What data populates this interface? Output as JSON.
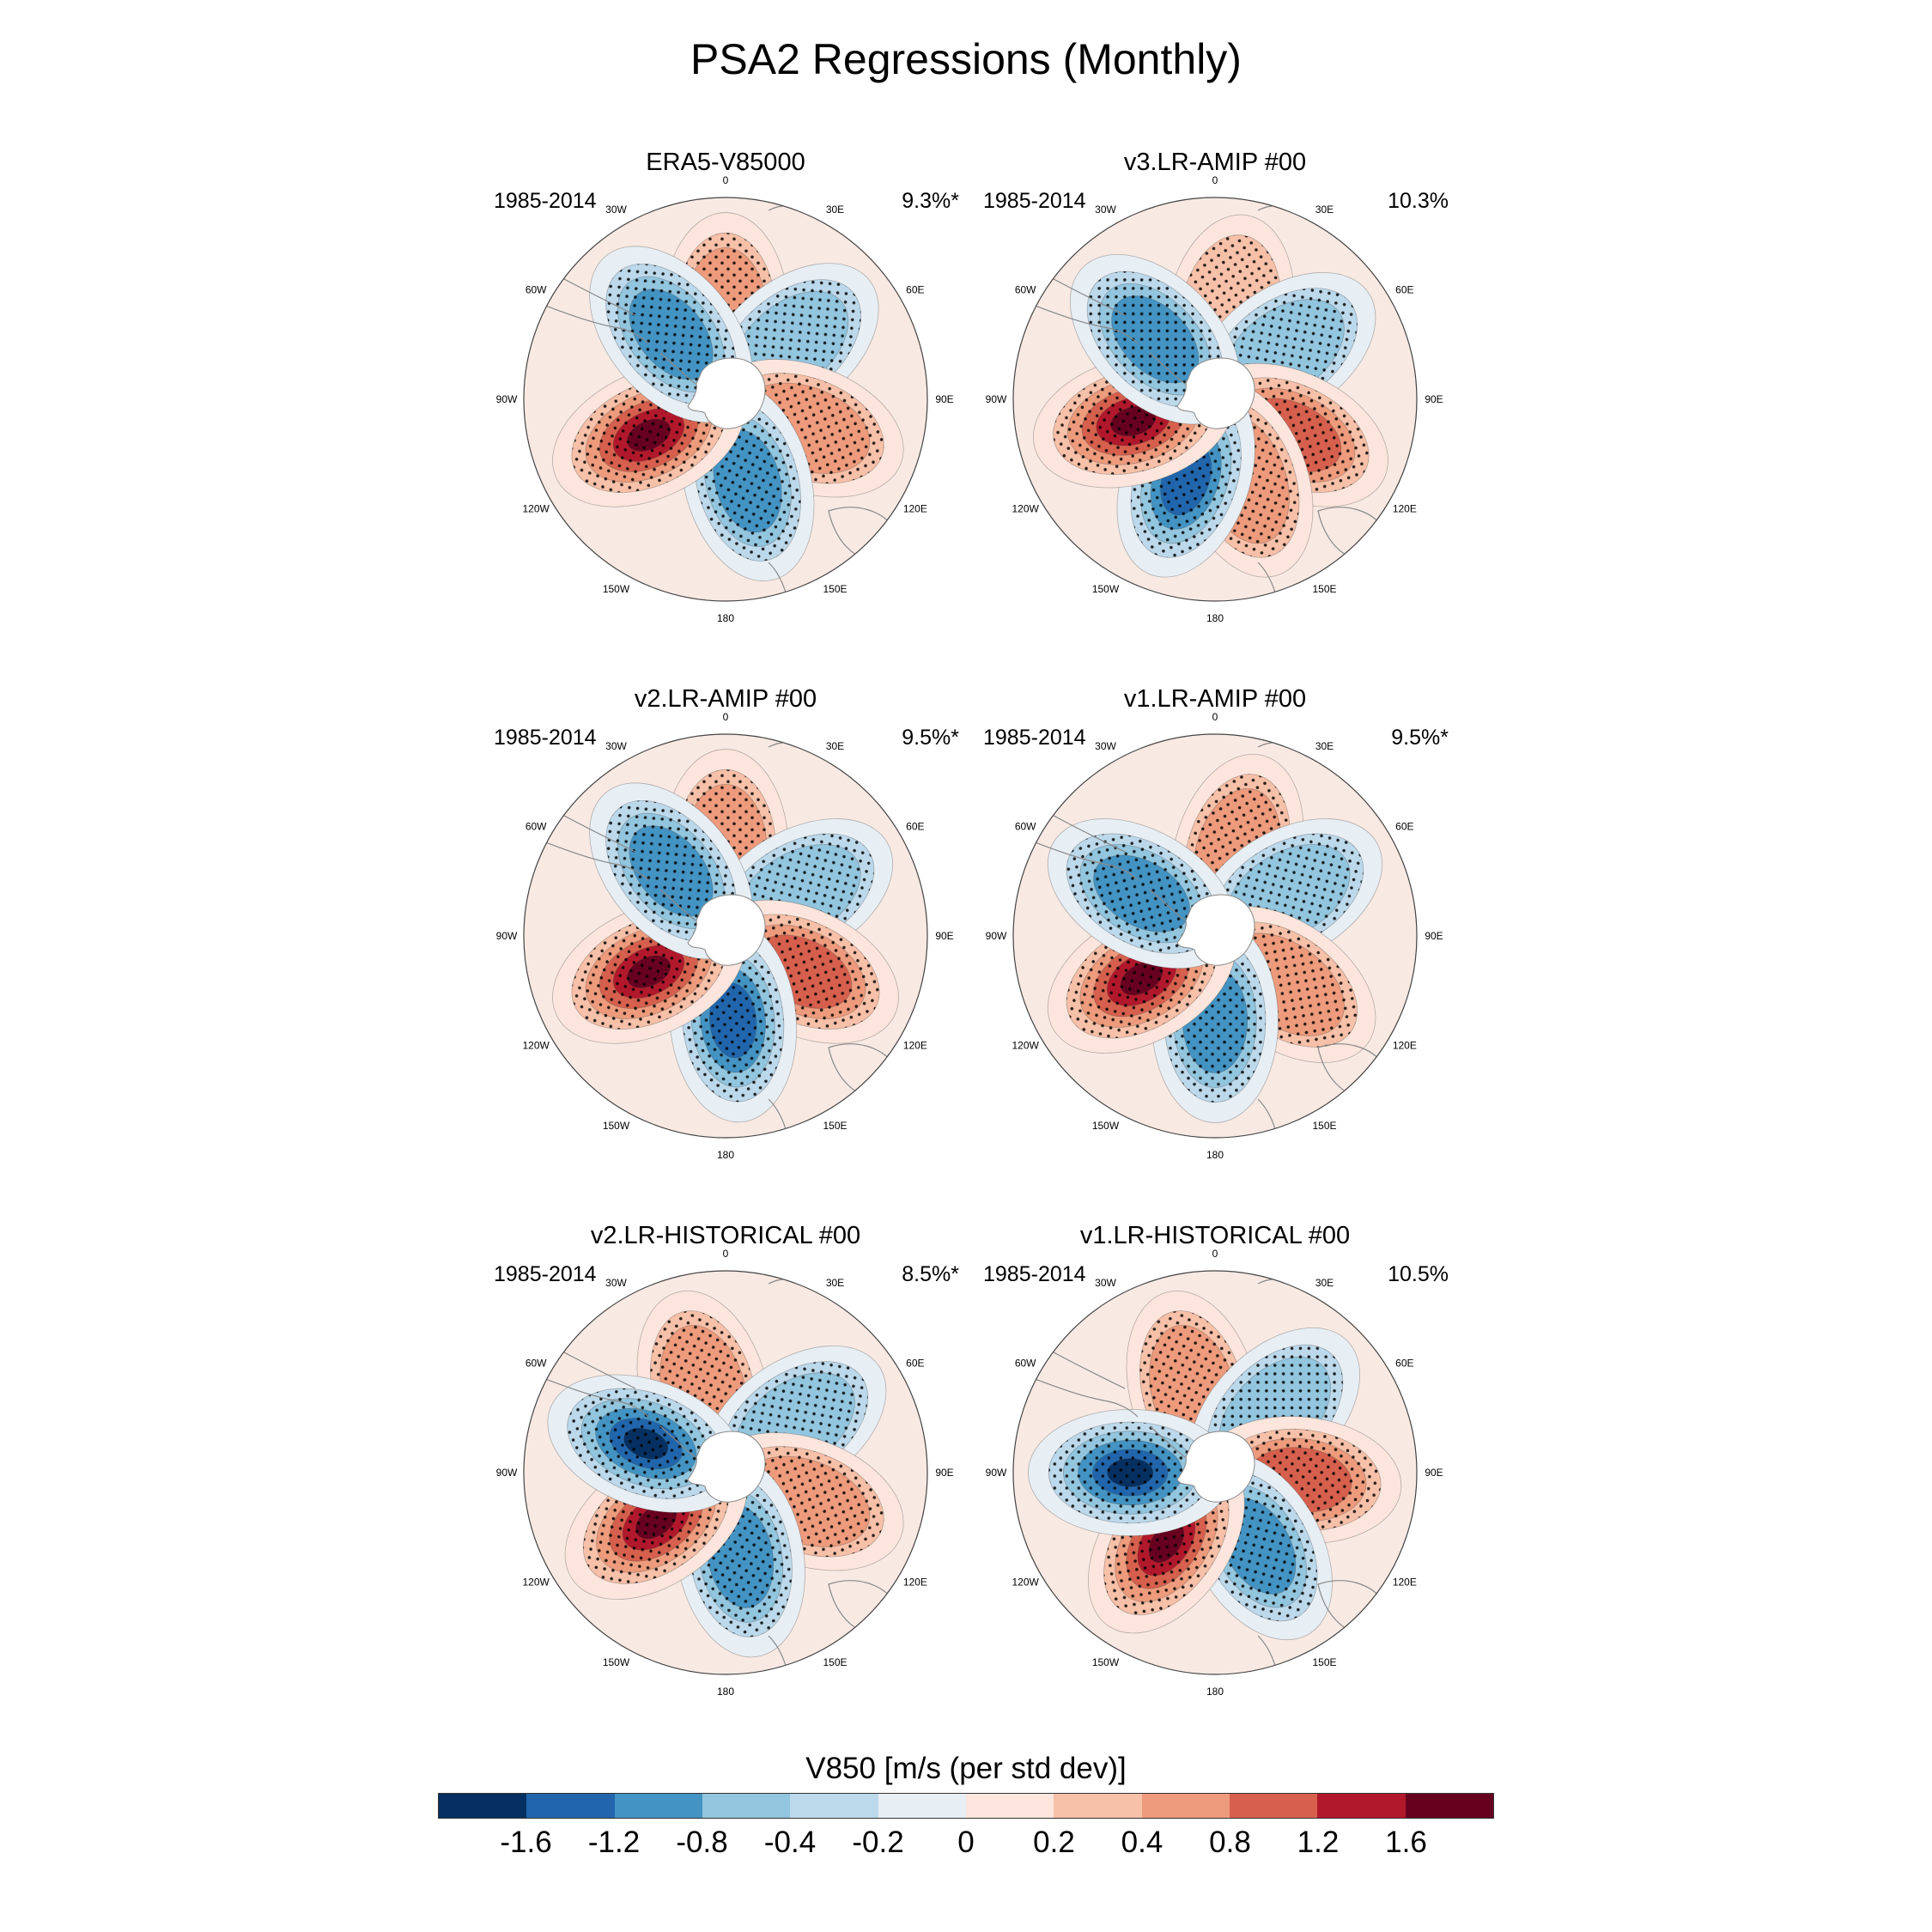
{
  "title": "PSA2 Regressions (Monthly)",
  "colorbar": {
    "title": "V850 [m/s (per std dev)]",
    "colors": [
      "#053061",
      "#2166ac",
      "#4393c3",
      "#92c5de",
      "#bcd9eb",
      "#e7eef4",
      "#fbe5dc",
      "#f7c0a8",
      "#ed9b7c",
      "#d6604d",
      "#b2182b",
      "#67001f"
    ],
    "labels": [
      "-1.6",
      "-1.2",
      "-0.8",
      "-0.4",
      "-0.2",
      "0",
      "0.2",
      "0.4",
      "0.8",
      "1.2",
      "1.6"
    ]
  },
  "lon_labels": [
    "0",
    "30E",
    "60E",
    "90E",
    "120E",
    "150E",
    "180",
    "150W",
    "120W",
    "90W",
    "60W",
    "30W"
  ],
  "chart_data": {
    "type": "heatmap",
    "projection": "south-polar-stereographic",
    "variable": "V850",
    "units": "m/s (per std dev)",
    "panels": [
      {
        "name": "ERA5-V85000",
        "period": "1985-2014",
        "variance_explained": "9.3%*",
        "centers": [
          {
            "lon": 0,
            "value": 0.6
          },
          {
            "lon": 50,
            "value": -0.6
          },
          {
            "lon": 110,
            "value": 0.7
          },
          {
            "lon": 165,
            "value": -1.1
          },
          {
            "lon": 245,
            "value": 1.8
          },
          {
            "lon": 320,
            "value": -1.0
          }
        ]
      },
      {
        "name": "v3.LR-AMIP  #00",
        "period": "1985-2014",
        "variance_explained": "10.3%",
        "centers": [
          {
            "lon": 10,
            "value": 0.2
          },
          {
            "lon": 55,
            "value": -0.5
          },
          {
            "lon": 115,
            "value": 0.9
          },
          {
            "lon": 160,
            "value": 0.4
          },
          {
            "lon": 200,
            "value": -1.5
          },
          {
            "lon": 255,
            "value": 1.8
          },
          {
            "lon": 315,
            "value": -0.8
          }
        ]
      },
      {
        "name": "v2.LR-AMIP  #00",
        "period": "1985-2014",
        "variance_explained": "9.5%*",
        "centers": [
          {
            "lon": 0,
            "value": 0.5
          },
          {
            "lon": 60,
            "value": -0.5
          },
          {
            "lon": 115,
            "value": 0.9
          },
          {
            "lon": 175,
            "value": -1.3
          },
          {
            "lon": 245,
            "value": 1.9
          },
          {
            "lon": 320,
            "value": -0.8
          }
        ]
      },
      {
        "name": "v1.LR-AMIP  #00",
        "period": "1985-2014",
        "variance_explained": "9.5%*",
        "centers": [
          {
            "lon": 15,
            "value": 0.6
          },
          {
            "lon": 60,
            "value": -0.4
          },
          {
            "lon": 125,
            "value": 0.5
          },
          {
            "lon": 180,
            "value": -0.9
          },
          {
            "lon": 240,
            "value": 1.7
          },
          {
            "lon": 300,
            "value": -0.8
          }
        ]
      },
      {
        "name": "v2.LR-HISTORICAL  #00",
        "period": "1985-2014",
        "variance_explained": "8.5%*",
        "centers": [
          {
            "lon": 345,
            "value": 0.6
          },
          {
            "lon": 55,
            "value": -0.4
          },
          {
            "lon": 110,
            "value": 0.6
          },
          {
            "lon": 170,
            "value": -0.8
          },
          {
            "lon": 235,
            "value": 1.8
          },
          {
            "lon": 290,
            "value": -1.6
          }
        ]
      },
      {
        "name": "v1.LR-HISTORICAL  #00",
        "period": "1985-2014",
        "variance_explained": "10.5%",
        "centers": [
          {
            "lon": 345,
            "value": 0.6
          },
          {
            "lon": 45,
            "value": -0.5
          },
          {
            "lon": 95,
            "value": 0.9
          },
          {
            "lon": 150,
            "value": -1.0
          },
          {
            "lon": 215,
            "value": 1.7
          },
          {
            "lon": 270,
            "value": -1.7
          }
        ]
      }
    ]
  }
}
